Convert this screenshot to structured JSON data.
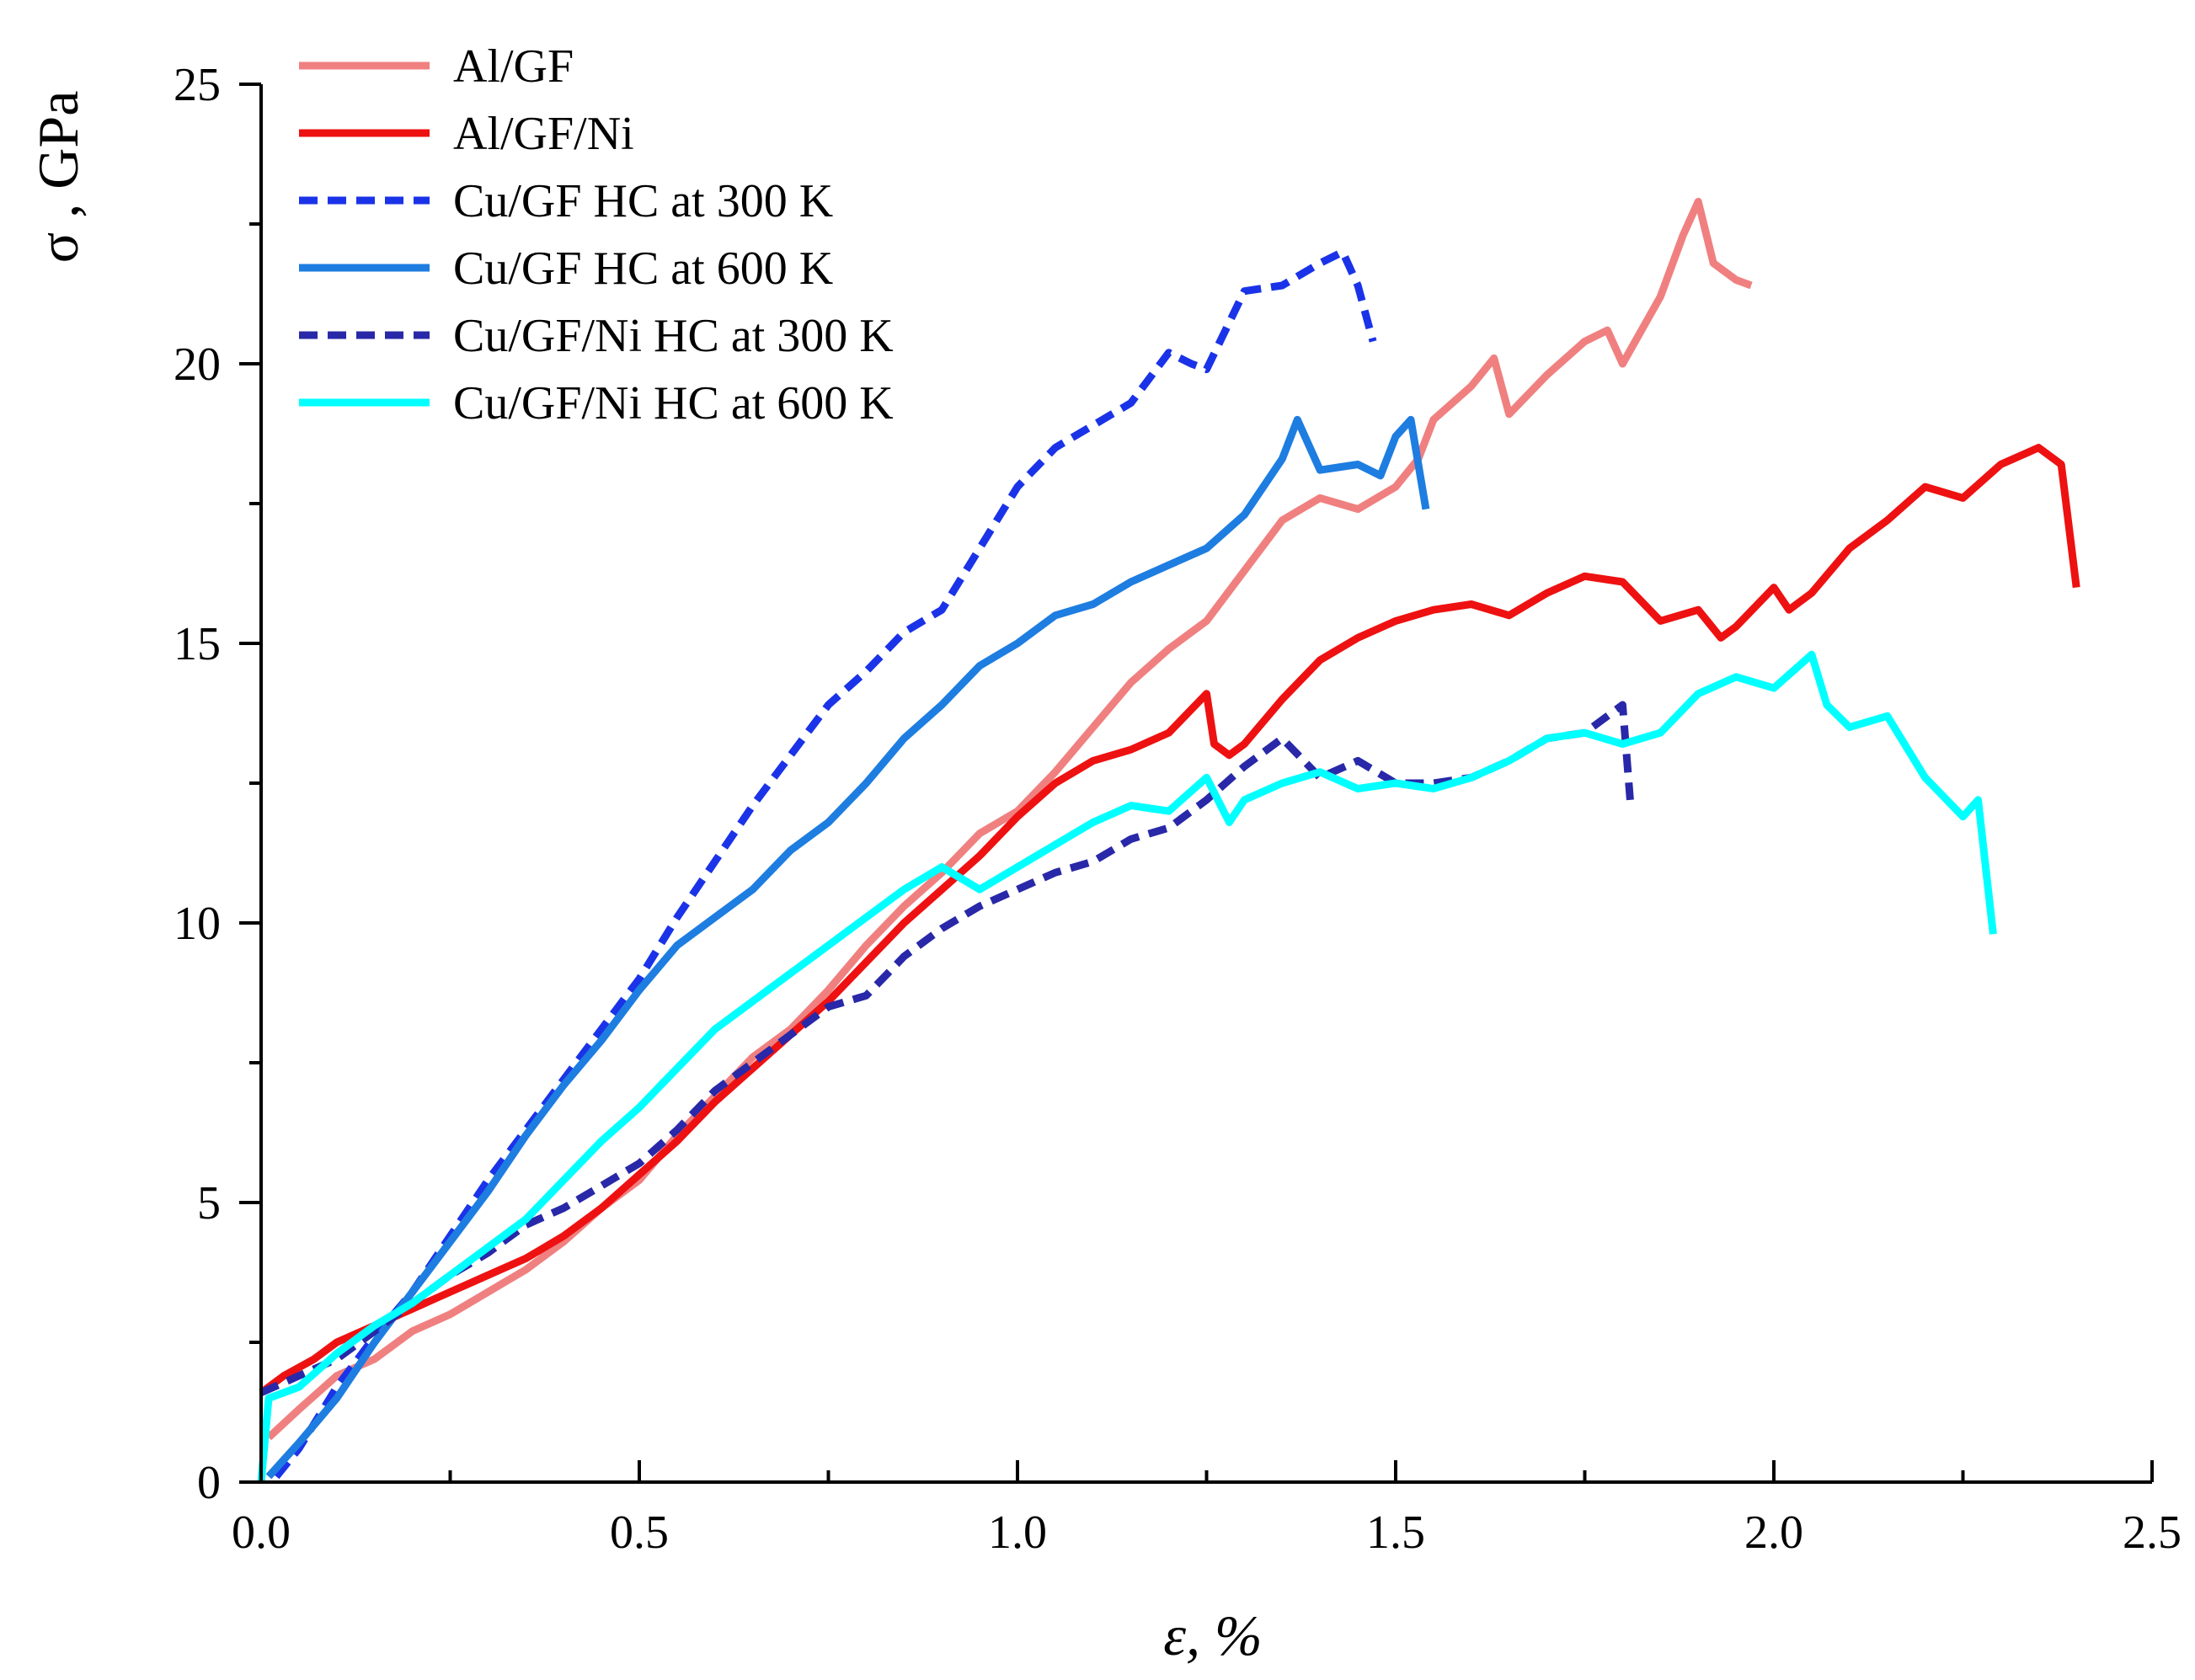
{
  "chart_data": {
    "type": "line",
    "title": "",
    "xlabel": "ε, %",
    "ylabel": "σ , GPa",
    "xlim": [
      0,
      2.5
    ],
    "ylim": [
      0,
      25
    ],
    "grid": false,
    "legend_position": "top-left",
    "x_ticks": [
      0.0,
      0.5,
      1.0,
      1.5,
      2.0,
      2.5
    ],
    "x_tick_labels": [
      "0.0",
      "0.5",
      "1.0",
      "1.5",
      "2.0",
      "2.5"
    ],
    "y_ticks": [
      0,
      5,
      10,
      15,
      20,
      25
    ],
    "y_tick_labels": [
      "0",
      "5",
      "10",
      "15",
      "20",
      "25"
    ],
    "series": [
      {
        "name": "Al/GF",
        "color": "#f08080",
        "dash": "solid",
        "points": [
          [
            0.01,
            0.8
          ],
          [
            0.05,
            1.3
          ],
          [
            0.1,
            1.9
          ],
          [
            0.15,
            2.2
          ],
          [
            0.2,
            2.7
          ],
          [
            0.25,
            3.0
          ],
          [
            0.3,
            3.4
          ],
          [
            0.35,
            3.8
          ],
          [
            0.4,
            4.3
          ],
          [
            0.45,
            4.9
          ],
          [
            0.5,
            5.4
          ],
          [
            0.55,
            6.2
          ],
          [
            0.6,
            6.9
          ],
          [
            0.65,
            7.6
          ],
          [
            0.7,
            8.1
          ],
          [
            0.75,
            8.8
          ],
          [
            0.8,
            9.6
          ],
          [
            0.85,
            10.3
          ],
          [
            0.9,
            10.9
          ],
          [
            0.95,
            11.6
          ],
          [
            1.0,
            12.0
          ],
          [
            1.05,
            12.7
          ],
          [
            1.1,
            13.5
          ],
          [
            1.15,
            14.3
          ],
          [
            1.2,
            14.9
          ],
          [
            1.25,
            15.4
          ],
          [
            1.3,
            16.3
          ],
          [
            1.35,
            17.2
          ],
          [
            1.4,
            17.6
          ],
          [
            1.45,
            17.4
          ],
          [
            1.5,
            17.8
          ],
          [
            1.53,
            18.3
          ],
          [
            1.55,
            19.0
          ],
          [
            1.6,
            19.6
          ],
          [
            1.63,
            20.1
          ],
          [
            1.65,
            19.1
          ],
          [
            1.7,
            19.8
          ],
          [
            1.75,
            20.4
          ],
          [
            1.78,
            20.6
          ],
          [
            1.8,
            20.0
          ],
          [
            1.85,
            21.2
          ],
          [
            1.88,
            22.3
          ],
          [
            1.9,
            22.9
          ],
          [
            1.92,
            21.8
          ],
          [
            1.95,
            21.5
          ],
          [
            1.97,
            21.4
          ]
        ]
      },
      {
        "name": "Al/GF/Ni",
        "color": "#ee1111",
        "dash": "solid",
        "points": [
          [
            0.0,
            1.6
          ],
          [
            0.03,
            1.9
          ],
          [
            0.07,
            2.2
          ],
          [
            0.1,
            2.5
          ],
          [
            0.15,
            2.8
          ],
          [
            0.2,
            3.1
          ],
          [
            0.25,
            3.4
          ],
          [
            0.3,
            3.7
          ],
          [
            0.35,
            4.0
          ],
          [
            0.4,
            4.4
          ],
          [
            0.45,
            4.9
          ],
          [
            0.5,
            5.5
          ],
          [
            0.55,
            6.1
          ],
          [
            0.6,
            6.8
          ],
          [
            0.65,
            7.4
          ],
          [
            0.7,
            8.0
          ],
          [
            0.75,
            8.6
          ],
          [
            0.8,
            9.3
          ],
          [
            0.85,
            10.0
          ],
          [
            0.9,
            10.6
          ],
          [
            0.95,
            11.2
          ],
          [
            1.0,
            11.9
          ],
          [
            1.05,
            12.5
          ],
          [
            1.1,
            12.9
          ],
          [
            1.15,
            13.1
          ],
          [
            1.2,
            13.4
          ],
          [
            1.25,
            14.1
          ],
          [
            1.26,
            13.2
          ],
          [
            1.28,
            13.0
          ],
          [
            1.3,
            13.2
          ],
          [
            1.35,
            14.0
          ],
          [
            1.4,
            14.7
          ],
          [
            1.45,
            15.1
          ],
          [
            1.5,
            15.4
          ],
          [
            1.55,
            15.6
          ],
          [
            1.6,
            15.7
          ],
          [
            1.65,
            15.5
          ],
          [
            1.7,
            15.9
          ],
          [
            1.75,
            16.2
          ],
          [
            1.8,
            16.1
          ],
          [
            1.85,
            15.4
          ],
          [
            1.9,
            15.6
          ],
          [
            1.93,
            15.1
          ],
          [
            1.95,
            15.3
          ],
          [
            2.0,
            16.0
          ],
          [
            2.02,
            15.6
          ],
          [
            2.05,
            15.9
          ],
          [
            2.1,
            16.7
          ],
          [
            2.15,
            17.2
          ],
          [
            2.2,
            17.8
          ],
          [
            2.25,
            17.6
          ],
          [
            2.3,
            18.2
          ],
          [
            2.35,
            18.5
          ],
          [
            2.38,
            18.2
          ],
          [
            2.4,
            16.0
          ]
        ]
      },
      {
        "name": "Cu/GF HC at 300 K",
        "color": "#1a33e8",
        "dash": "dashed",
        "points": [
          [
            0.02,
            0.1
          ],
          [
            0.05,
            0.6
          ],
          [
            0.1,
            1.7
          ],
          [
            0.15,
            2.6
          ],
          [
            0.2,
            3.4
          ],
          [
            0.25,
            4.4
          ],
          [
            0.3,
            5.4
          ],
          [
            0.35,
            6.3
          ],
          [
            0.4,
            7.2
          ],
          [
            0.45,
            8.1
          ],
          [
            0.5,
            9.0
          ],
          [
            0.55,
            10.1
          ],
          [
            0.6,
            11.1
          ],
          [
            0.65,
            12.1
          ],
          [
            0.7,
            13.0
          ],
          [
            0.75,
            13.9
          ],
          [
            0.8,
            14.5
          ],
          [
            0.85,
            15.2
          ],
          [
            0.9,
            15.6
          ],
          [
            0.95,
            16.7
          ],
          [
            1.0,
            17.8
          ],
          [
            1.05,
            18.5
          ],
          [
            1.1,
            18.9
          ],
          [
            1.15,
            19.3
          ],
          [
            1.2,
            20.2
          ],
          [
            1.23,
            20.0
          ],
          [
            1.25,
            19.9
          ],
          [
            1.3,
            21.3
          ],
          [
            1.35,
            21.4
          ],
          [
            1.4,
            21.8
          ],
          [
            1.43,
            22.0
          ],
          [
            1.45,
            21.4
          ],
          [
            1.47,
            20.4
          ]
        ]
      },
      {
        "name": "Cu/GF HC at 600 K",
        "color": "#1e7de0",
        "dash": "solid",
        "points": [
          [
            0.01,
            0.1
          ],
          [
            0.05,
            0.7
          ],
          [
            0.1,
            1.5
          ],
          [
            0.15,
            2.5
          ],
          [
            0.2,
            3.4
          ],
          [
            0.25,
            4.3
          ],
          [
            0.3,
            5.2
          ],
          [
            0.35,
            6.2
          ],
          [
            0.4,
            7.1
          ],
          [
            0.45,
            7.9
          ],
          [
            0.5,
            8.8
          ],
          [
            0.55,
            9.6
          ],
          [
            0.6,
            10.1
          ],
          [
            0.65,
            10.6
          ],
          [
            0.7,
            11.3
          ],
          [
            0.75,
            11.8
          ],
          [
            0.8,
            12.5
          ],
          [
            0.85,
            13.3
          ],
          [
            0.9,
            13.9
          ],
          [
            0.95,
            14.6
          ],
          [
            1.0,
            15.0
          ],
          [
            1.05,
            15.5
          ],
          [
            1.1,
            15.7
          ],
          [
            1.15,
            16.1
          ],
          [
            1.2,
            16.4
          ],
          [
            1.25,
            16.7
          ],
          [
            1.3,
            17.3
          ],
          [
            1.35,
            18.3
          ],
          [
            1.37,
            19.0
          ],
          [
            1.4,
            18.1
          ],
          [
            1.45,
            18.2
          ],
          [
            1.48,
            18.0
          ],
          [
            1.5,
            18.7
          ],
          [
            1.52,
            19.0
          ],
          [
            1.54,
            17.4
          ]
        ]
      },
      {
        "name": "Cu/GF/Ni HC at 300 K",
        "color": "#2828a8",
        "dash": "dashed",
        "points": [
          [
            0.0,
            1.6
          ],
          [
            0.05,
            1.9
          ],
          [
            0.1,
            2.2
          ],
          [
            0.15,
            2.7
          ],
          [
            0.2,
            3.2
          ],
          [
            0.25,
            3.7
          ],
          [
            0.3,
            4.1
          ],
          [
            0.35,
            4.6
          ],
          [
            0.4,
            4.9
          ],
          [
            0.45,
            5.3
          ],
          [
            0.5,
            5.7
          ],
          [
            0.55,
            6.3
          ],
          [
            0.6,
            7.0
          ],
          [
            0.65,
            7.5
          ],
          [
            0.7,
            8.0
          ],
          [
            0.75,
            8.5
          ],
          [
            0.8,
            8.7
          ],
          [
            0.85,
            9.4
          ],
          [
            0.9,
            9.9
          ],
          [
            0.95,
            10.3
          ],
          [
            1.0,
            10.6
          ],
          [
            1.05,
            10.9
          ],
          [
            1.1,
            11.1
          ],
          [
            1.15,
            11.5
          ],
          [
            1.2,
            11.7
          ],
          [
            1.25,
            12.2
          ],
          [
            1.3,
            12.8
          ],
          [
            1.35,
            13.3
          ],
          [
            1.4,
            12.6
          ],
          [
            1.45,
            12.9
          ],
          [
            1.5,
            12.5
          ],
          [
            1.55,
            12.5
          ],
          [
            1.6,
            12.6
          ],
          [
            1.65,
            12.9
          ],
          [
            1.7,
            13.3
          ],
          [
            1.75,
            13.4
          ],
          [
            1.8,
            13.9
          ],
          [
            1.81,
            12.2
          ]
        ]
      },
      {
        "name": "Cu/GF/Ni HC at 600 K",
        "color": "#00ffff",
        "dash": "solid",
        "points": [
          [
            0.0,
            0.0
          ],
          [
            0.01,
            1.5
          ],
          [
            0.05,
            1.7
          ],
          [
            0.1,
            2.3
          ],
          [
            0.15,
            2.8
          ],
          [
            0.2,
            3.2
          ],
          [
            0.25,
            3.7
          ],
          [
            0.3,
            4.2
          ],
          [
            0.35,
            4.7
          ],
          [
            0.4,
            5.4
          ],
          [
            0.45,
            6.1
          ],
          [
            0.5,
            6.7
          ],
          [
            0.55,
            7.4
          ],
          [
            0.6,
            8.1
          ],
          [
            0.65,
            8.6
          ],
          [
            0.7,
            9.1
          ],
          [
            0.75,
            9.6
          ],
          [
            0.8,
            10.1
          ],
          [
            0.85,
            10.6
          ],
          [
            0.9,
            11.0
          ],
          [
            0.95,
            10.6
          ],
          [
            1.0,
            11.0
          ],
          [
            1.05,
            11.4
          ],
          [
            1.1,
            11.8
          ],
          [
            1.15,
            12.1
          ],
          [
            1.2,
            12.0
          ],
          [
            1.25,
            12.6
          ],
          [
            1.28,
            11.8
          ],
          [
            1.3,
            12.2
          ],
          [
            1.35,
            12.5
          ],
          [
            1.4,
            12.7
          ],
          [
            1.45,
            12.4
          ],
          [
            1.5,
            12.5
          ],
          [
            1.55,
            12.4
          ],
          [
            1.6,
            12.6
          ],
          [
            1.65,
            12.9
          ],
          [
            1.7,
            13.3
          ],
          [
            1.75,
            13.4
          ],
          [
            1.8,
            13.2
          ],
          [
            1.85,
            13.4
          ],
          [
            1.9,
            14.1
          ],
          [
            1.95,
            14.4
          ],
          [
            2.0,
            14.2
          ],
          [
            2.05,
            14.8
          ],
          [
            2.07,
            13.9
          ],
          [
            2.1,
            13.5
          ],
          [
            2.15,
            13.7
          ],
          [
            2.2,
            12.6
          ],
          [
            2.25,
            11.9
          ],
          [
            2.27,
            12.2
          ],
          [
            2.29,
            9.8
          ]
        ]
      }
    ]
  }
}
